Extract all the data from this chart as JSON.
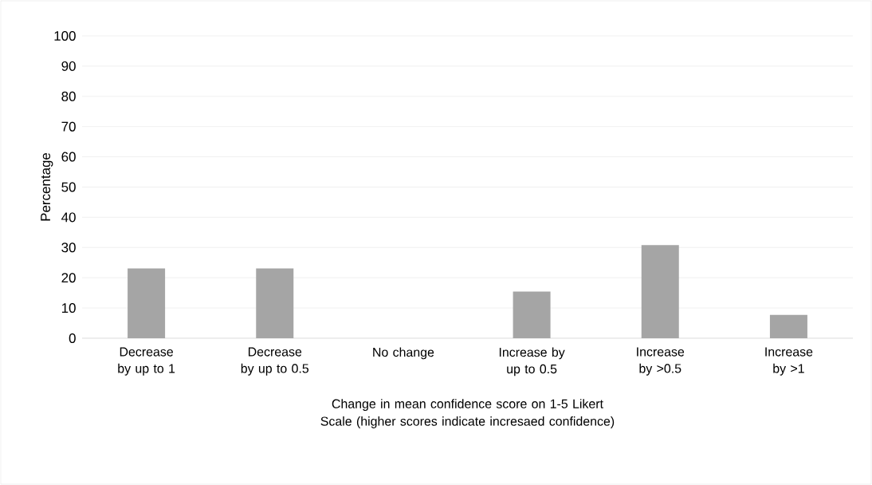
{
  "chart_data": {
    "type": "bar",
    "xlabel": "Change in mean confidence score on 1-5 Likert Scale (higher scores indicate incresaed confidence)",
    "ylabel": "Percentage",
    "categories": [
      "Decrease by up to 1",
      "Decrease by up to 0.5",
      "No change",
      "Increase by up to 0.5",
      "Increase by >0.5",
      "Increase by >1"
    ],
    "values": [
      23.1,
      23.1,
      0,
      15.4,
      30.8,
      7.7
    ],
    "color": "#a5a5a5",
    "ylim": [
      0,
      100
    ],
    "yticks": [
      0,
      10,
      20,
      30,
      40,
      50,
      60,
      70,
      80,
      90,
      100
    ],
    "grid": "y"
  }
}
